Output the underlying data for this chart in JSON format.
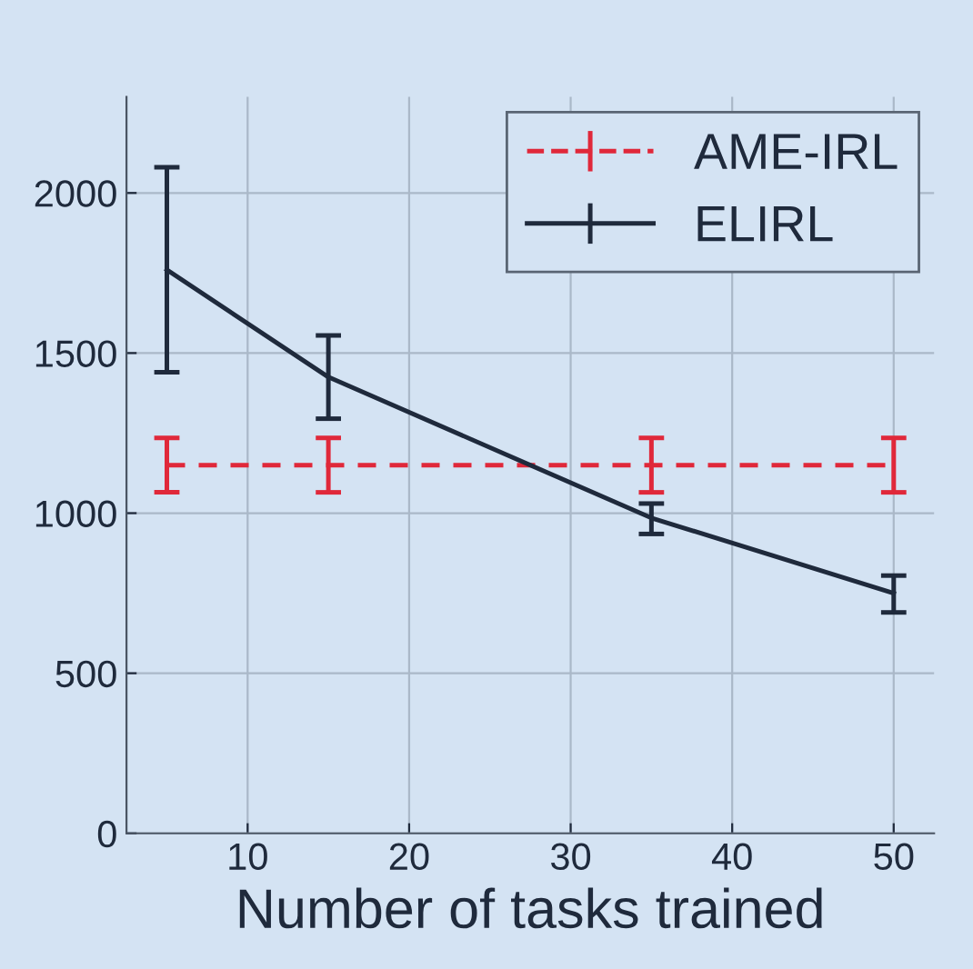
{
  "chart_data": {
    "type": "line",
    "xlabel": "Number of tasks trained",
    "x": [
      5,
      15,
      35,
      50
    ],
    "series": [
      {
        "name": "AME-IRL",
        "color": "#e0283a",
        "line_style": "dashed",
        "values": [
          1150,
          1150,
          1150,
          1150
        ],
        "errors": [
          [
            1065,
            1235
          ],
          [
            1065,
            1235
          ],
          [
            1065,
            1235
          ],
          [
            1065,
            1235
          ]
        ]
      },
      {
        "name": "ELIRL",
        "color": "#1f2a3c",
        "line_style": "solid",
        "values": [
          1760,
          1425,
          985,
          750
        ],
        "errors": [
          [
            1440,
            2080
          ],
          [
            1295,
            1555
          ],
          [
            935,
            1030
          ],
          [
            690,
            805
          ]
        ]
      }
    ],
    "xlim": [
      2.5,
      52.5
    ],
    "ylim": [
      0,
      2300
    ],
    "xticks": [
      10,
      20,
      30,
      40,
      50
    ],
    "yticks": [
      0,
      500,
      1000,
      1500,
      2000
    ],
    "grid": true,
    "legend": "top right",
    "marker": "none"
  }
}
